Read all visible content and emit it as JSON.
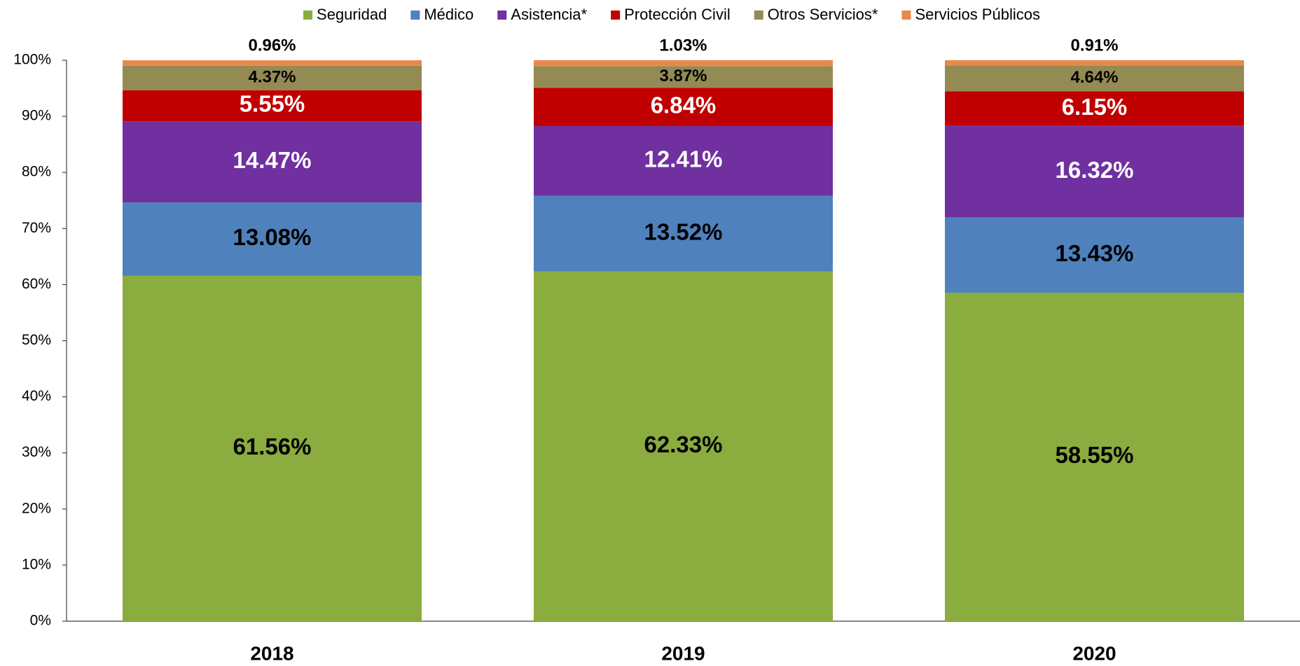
{
  "chart_data": {
    "type": "stacked_bar",
    "categories": [
      "2018",
      "2019",
      "2020"
    ],
    "series": [
      {
        "name": "Seguridad",
        "color": "#8bac3e",
        "values": [
          61.56,
          62.33,
          58.55
        ],
        "value_labels": [
          "61.56%",
          "62.33%",
          "58.55%"
        ]
      },
      {
        "name": "Médico",
        "color": "#4f81bd",
        "values": [
          13.08,
          13.52,
          13.43
        ],
        "value_labels": [
          "13.08%",
          "13.52%",
          "13.43%"
        ]
      },
      {
        "name": "Asistencia*",
        "color": "#7030a0",
        "values": [
          14.47,
          12.41,
          16.32
        ],
        "value_labels": [
          "14.47%",
          "12.41%",
          "16.32%"
        ]
      },
      {
        "name": "Protección Civil",
        "color": "#c00000",
        "values": [
          5.55,
          6.84,
          6.15
        ],
        "value_labels": [
          "5.55%",
          "6.84%",
          "6.15%"
        ]
      },
      {
        "name": "Otros Servicios*",
        "color": "#948a54",
        "values": [
          4.37,
          3.87,
          4.64
        ],
        "value_labels": [
          "4.37%",
          "3.87%",
          "4.64%"
        ]
      },
      {
        "name": "Servicios Públicos",
        "color": "#e8894a",
        "values": [
          0.96,
          1.03,
          0.91
        ],
        "value_labels": [
          "0.96%",
          "1.03%",
          "0.91%"
        ]
      }
    ],
    "ylim": [
      0,
      100
    ],
    "yticks": [
      {
        "value": 0,
        "label": "0%"
      },
      {
        "value": 10,
        "label": "10%"
      },
      {
        "value": 20,
        "label": "20%"
      },
      {
        "value": 30,
        "label": "30%"
      },
      {
        "value": 40,
        "label": "40%"
      },
      {
        "value": 50,
        "label": "50%"
      },
      {
        "value": 60,
        "label": "60%"
      },
      {
        "value": 70,
        "label": "70%"
      },
      {
        "value": 80,
        "label": "80%"
      },
      {
        "value": 90,
        "label": "90%"
      },
      {
        "value": 100,
        "label": "100%"
      }
    ],
    "grid": false,
    "legend": "top"
  }
}
